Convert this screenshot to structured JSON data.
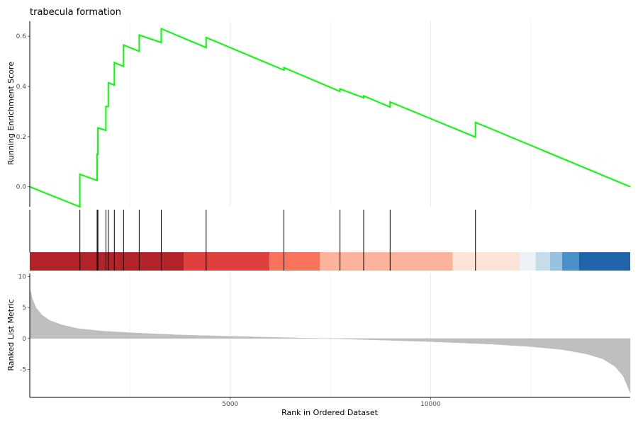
{
  "chart_data": {
    "type": "line",
    "title": "trabecula formation",
    "panels": {
      "enrichment": {
        "ylabel": "Running Enrichment Score",
        "yticks": [
          0.0,
          0.2,
          0.4,
          0.6
        ],
        "ytick_labels": [
          "0.0",
          "0.2",
          "0.4",
          "0.6"
        ],
        "ylim": [
          -0.08,
          0.66
        ],
        "line_color": "#00ff00",
        "points": [
          [
            0,
            0.0
          ],
          [
            1250,
            -0.08
          ],
          [
            1250,
            0.05
          ],
          [
            1680,
            0.025
          ],
          [
            1680,
            0.13
          ],
          [
            1700,
            0.13
          ],
          [
            1700,
            0.235
          ],
          [
            1900,
            0.225
          ],
          [
            1900,
            0.32
          ],
          [
            1960,
            0.32
          ],
          [
            1960,
            0.415
          ],
          [
            2110,
            0.405
          ],
          [
            2110,
            0.495
          ],
          [
            2340,
            0.48
          ],
          [
            2340,
            0.565
          ],
          [
            2730,
            0.54
          ],
          [
            2730,
            0.605
          ],
          [
            3280,
            0.575
          ],
          [
            3280,
            0.63
          ],
          [
            4400,
            0.555
          ],
          [
            4400,
            0.595
          ],
          [
            6340,
            0.465
          ],
          [
            6340,
            0.475
          ],
          [
            7740,
            0.38
          ],
          [
            7740,
            0.39
          ],
          [
            8330,
            0.355
          ],
          [
            8330,
            0.362
          ],
          [
            8990,
            0.318
          ],
          [
            8990,
            0.338
          ],
          [
            11120,
            0.198
          ],
          [
            11120,
            0.257
          ],
          [
            14980,
            0.0
          ]
        ]
      },
      "hits": {
        "positions": [
          1250,
          1680,
          1700,
          1900,
          1960,
          2110,
          2340,
          2730,
          3280,
          4400,
          6340,
          7740,
          8330,
          8990,
          11120
        ],
        "color_bands": [
          {
            "end": 3850,
            "color": "#b2232a"
          },
          {
            "end": 5980,
            "color": "#e0403d"
          },
          {
            "end": 7240,
            "color": "#f7735a"
          },
          {
            "end": 10550,
            "color": "#fbb49b"
          },
          {
            "end": 12220,
            "color": "#fde4d9"
          },
          {
            "end": 12620,
            "color": "#edf2f8"
          },
          {
            "end": 12980,
            "color": "#c5dceb"
          },
          {
            "end": 13280,
            "color": "#97c3de"
          },
          {
            "end": 13700,
            "color": "#4a91c8"
          },
          {
            "end": 14980,
            "color": "#2065ab"
          }
        ]
      },
      "ranked": {
        "ylabel": "Ranked List Metric",
        "yticks": [
          -5,
          0,
          5,
          10
        ],
        "ytick_labels": [
          "-5",
          "0",
          "5",
          "10"
        ],
        "ylim": [
          -9.5,
          10.5
        ],
        "fill_color": "#bebebe",
        "profile": [
          [
            0,
            8.0
          ],
          [
            60,
            6.5
          ],
          [
            150,
            5.0
          ],
          [
            300,
            3.8
          ],
          [
            500,
            2.9
          ],
          [
            800,
            2.2
          ],
          [
            1200,
            1.6
          ],
          [
            1800,
            1.2
          ],
          [
            2600,
            0.9
          ],
          [
            3600,
            0.6
          ],
          [
            5000,
            0.35
          ],
          [
            6500,
            0.12
          ],
          [
            7400,
            0.0
          ],
          [
            8500,
            -0.2
          ],
          [
            10000,
            -0.5
          ],
          [
            11500,
            -0.9
          ],
          [
            12500,
            -1.3
          ],
          [
            13300,
            -1.8
          ],
          [
            13900,
            -2.5
          ],
          [
            14300,
            -3.3
          ],
          [
            14600,
            -4.5
          ],
          [
            14800,
            -6.0
          ],
          [
            14900,
            -7.5
          ],
          [
            14980,
            -8.8
          ]
        ]
      }
    },
    "x": {
      "xlabel": "Rank in Ordered Dataset",
      "xlim": [
        0,
        14980
      ],
      "xticks": [
        5000,
        10000
      ],
      "xtick_labels": [
        "5000",
        "10000"
      ],
      "minor_gridlines": [
        2500,
        7500,
        12500
      ]
    },
    "grid": true
  }
}
